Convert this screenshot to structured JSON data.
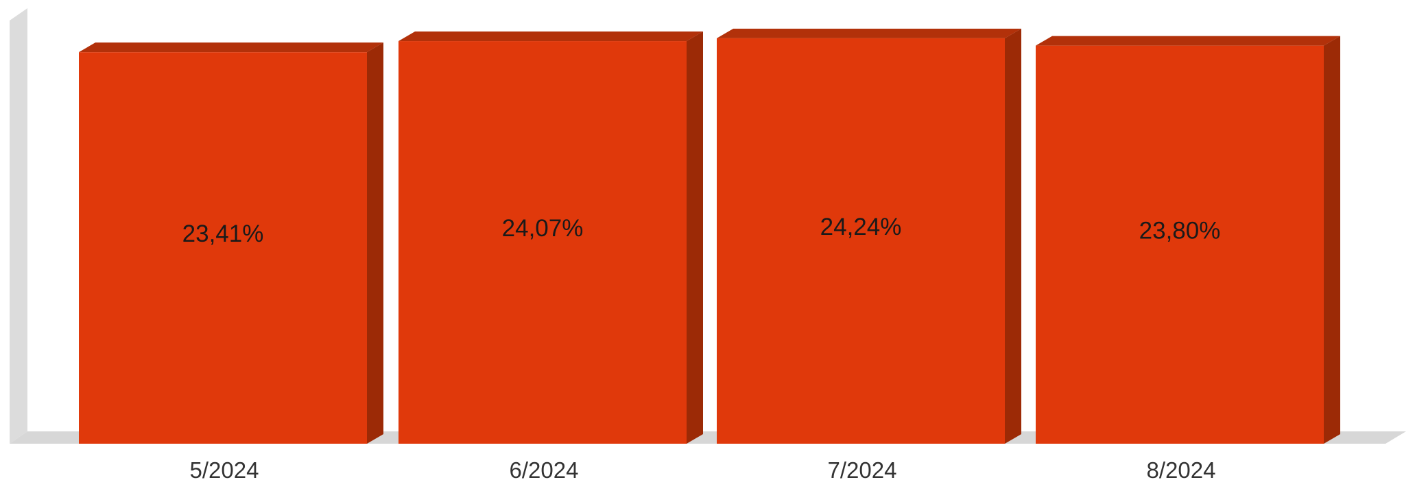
{
  "chart_data": {
    "type": "bar",
    "style": "3d",
    "title": "",
    "xlabel": "",
    "ylabel": "",
    "categories": [
      "5/2024",
      "6/2024",
      "7/2024",
      "8/2024"
    ],
    "values": [
      23.41,
      24.07,
      24.24,
      23.8
    ],
    "labels": [
      "23,41%",
      "24,07%",
      "24,24%",
      "23,80%"
    ],
    "unit": "%",
    "ylim": [
      0,
      25.3
    ],
    "grid": false,
    "legend": "none",
    "y_axis_tick_labels": "none"
  },
  "colors": {
    "bar_front": "#e0390b",
    "bar_top": "#b2310a",
    "bar_side": "#9c2a06",
    "wall": "#dcdcdc",
    "floor": "#d7d7d7"
  }
}
